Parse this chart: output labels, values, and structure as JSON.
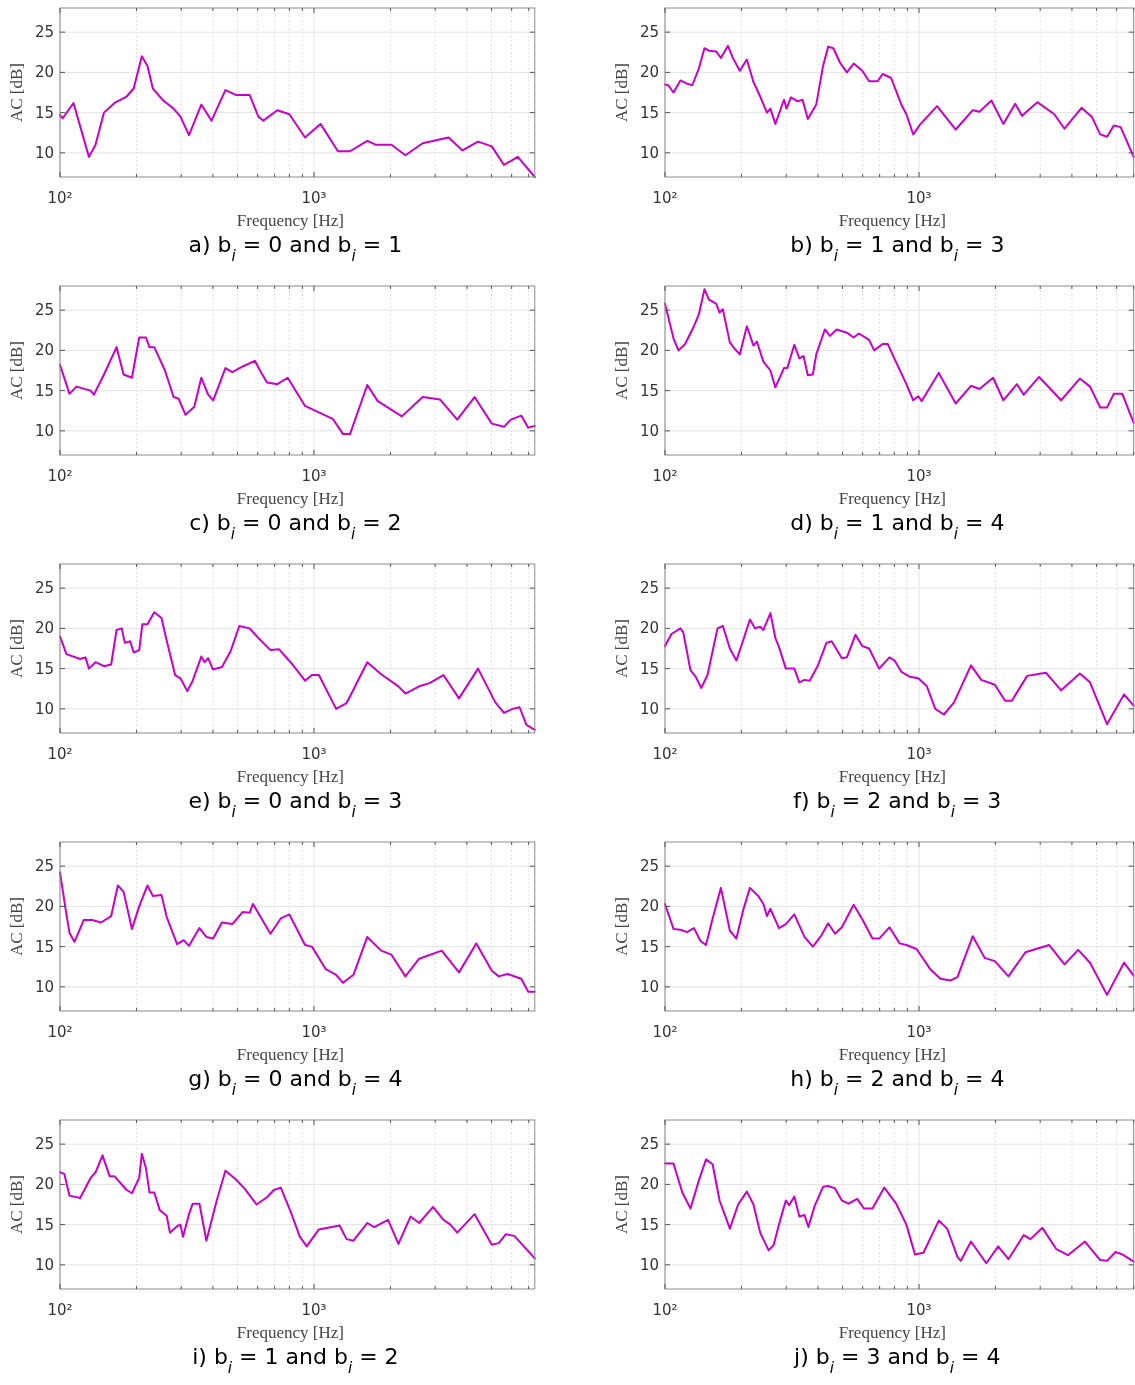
{
  "chart_data": [
    {
      "type": "line",
      "title": "a) b$_{i}$ = 0 and b$_{i}$ = 1",
      "xlabel": "Frequency [Hz]",
      "ylabel": "AC [dB]",
      "log": "x",
      "grid": true,
      "xlim": [
        100,
        7400
      ],
      "ylim": [
        7,
        28
      ],
      "yticks": [
        10,
        15,
        20,
        25
      ],
      "xticks": [
        {
          "value": 100,
          "label": "10²"
        },
        {
          "value": 200,
          "label": null
        },
        {
          "value": 300,
          "label": null
        },
        {
          "value": 400,
          "label": null
        },
        {
          "value": 500,
          "label": null
        },
        {
          "value": 600,
          "label": null
        },
        {
          "value": 700,
          "label": null
        },
        {
          "value": 800,
          "label": null
        },
        {
          "value": 900,
          "label": null
        },
        {
          "value": 1000,
          "label": "10³"
        },
        {
          "value": 2000,
          "label": null
        },
        {
          "value": 3000,
          "label": null
        },
        {
          "value": 4000,
          "label": null
        },
        {
          "value": 5000,
          "label": null
        },
        {
          "value": 6000,
          "label": null
        },
        {
          "value": 7000,
          "label": null
        }
      ],
      "x": [
        100,
        102.5,
        113,
        130,
        138,
        149,
        164,
        183,
        195,
        210,
        221,
        232,
        255,
        280,
        298,
        322,
        360,
        395,
        448,
        492,
        558,
        604,
        632,
        717,
        800,
        922,
        1061,
        1242,
        1386,
        1621,
        1754,
        2018,
        2290,
        2678,
        3388,
        3840,
        4424,
        5013,
        5596,
        6346,
        7400
      ],
      "series": [
        {
          "color": "#c800c8",
          "values": [
            14.7,
            14.3,
            16.2,
            9.5,
            11,
            15,
            16.2,
            17,
            18,
            22,
            20.8,
            18,
            16.5,
            15.5,
            14.5,
            12.2,
            16,
            14,
            17.8,
            17.2,
            17.2,
            14.5,
            14,
            15.3,
            14.8,
            11.9,
            13.6,
            10.2,
            10.2,
            11.5,
            11,
            11,
            9.7,
            11.2,
            11.9,
            10.3,
            11.4,
            10.8,
            8.5,
            9.5,
            7
          ]
        }
      ]
    },
    {
      "type": "line",
      "title": "b) b$_{i}$ = 1 and b$_{i}$ = 3",
      "xlabel": "Frequency [Hz]",
      "ylabel": "AC [dB]",
      "log": "x",
      "grid": true,
      "xlim": [
        100,
        7000
      ],
      "ylim": [
        7,
        28
      ],
      "yticks": [
        10,
        15,
        20,
        25
      ],
      "xticks": [
        {
          "value": 100,
          "label": "10²"
        },
        {
          "value": 200,
          "label": null
        },
        {
          "value": 300,
          "label": null
        },
        {
          "value": 400,
          "label": null
        },
        {
          "value": 500,
          "label": null
        },
        {
          "value": 600,
          "label": null
        },
        {
          "value": 700,
          "label": null
        },
        {
          "value": 800,
          "label": null
        },
        {
          "value": 900,
          "label": null
        },
        {
          "value": 1000,
          "label": "10³"
        },
        {
          "value": 2000,
          "label": null
        },
        {
          "value": 3000,
          "label": null
        },
        {
          "value": 4000,
          "label": null
        },
        {
          "value": 5000,
          "label": null
        },
        {
          "value": 6000,
          "label": null
        },
        {
          "value": 7000,
          "label": null
        }
      ],
      "x": [
        100,
        103,
        108,
        115,
        122,
        128,
        136,
        143,
        149,
        159,
        166,
        177,
        185,
        197,
        210,
        223,
        237,
        252,
        260,
        272,
        294,
        301,
        313,
        333,
        348,
        365,
        394,
        419,
        439,
        460,
        489,
        520,
        553,
        598,
        636,
        687,
        719,
        777,
        852,
        892,
        949,
        1009,
        1178,
        1395,
        1628,
        1730,
        1928,
        2148,
        2392,
        2545,
        2923,
        3410,
        3740,
        4364,
        4786,
        5170,
        5499,
        5849,
        6221,
        7000
      ],
      "series": [
        {
          "color": "#c800c8",
          "values": [
            18.5,
            18.4,
            17.5,
            19,
            18.6,
            18.4,
            20.5,
            23,
            22.7,
            22.6,
            21.8,
            23.3,
            21.8,
            20.2,
            21.6,
            18.8,
            17,
            15,
            15.5,
            13.6,
            16.6,
            15.5,
            16.9,
            16.4,
            16.6,
            14.2,
            16,
            20.8,
            23.2,
            23,
            21.2,
            20,
            21.1,
            20.2,
            18.9,
            18.9,
            19.8,
            19.3,
            16,
            14.8,
            12.3,
            13.5,
            15.8,
            12.9,
            15.3,
            15.1,
            16.5,
            13.6,
            16.1,
            14.6,
            16.3,
            14.8,
            13,
            15.6,
            14.5,
            12.3,
            12,
            13.4,
            13.2,
            9.5
          ]
        }
      ]
    },
    {
      "type": "line",
      "title": "c) b$_{i}$ = 0 and b$_{i}$ = 2",
      "xlabel": "Frequency [Hz]",
      "ylabel": "AC [dB]",
      "log": "x",
      "grid": true,
      "xlim": [
        100,
        7400
      ],
      "ylim": [
        7,
        28
      ],
      "yticks": [
        10,
        15,
        20,
        25
      ],
      "xticks": [
        {
          "value": 100,
          "label": "10²"
        },
        {
          "value": 200,
          "label": null
        },
        {
          "value": 300,
          "label": null
        },
        {
          "value": 400,
          "label": null
        },
        {
          "value": 500,
          "label": null
        },
        {
          "value": 600,
          "label": null
        },
        {
          "value": 700,
          "label": null
        },
        {
          "value": 800,
          "label": null
        },
        {
          "value": 900,
          "label": null
        },
        {
          "value": 1000,
          "label": "10³"
        },
        {
          "value": 2000,
          "label": null
        },
        {
          "value": 3000,
          "label": null
        },
        {
          "value": 4000,
          "label": null
        },
        {
          "value": 5000,
          "label": null
        },
        {
          "value": 6000,
          "label": null
        },
        {
          "value": 7000,
          "label": null
        }
      ],
      "x": [
        100,
        109,
        116,
        132,
        136,
        149,
        167,
        178,
        192,
        205,
        218,
        225,
        235,
        259,
        280,
        293,
        312,
        338,
        360,
        383,
        401,
        448,
        477,
        524,
        585,
        613,
        653,
        717,
        788,
        922,
        1045,
        1185,
        1301,
        1386,
        1621,
        1782,
        2218,
        2678,
        3133,
        3664,
        4288,
        5013,
        5596,
        5960,
        6546,
        6970,
        7400
      ],
      "series": [
        {
          "color": "#c800c8",
          "values": [
            18.2,
            14.6,
            15.5,
            15,
            14.5,
            17,
            20.4,
            17,
            16.6,
            21.6,
            21.6,
            20.4,
            20.4,
            17.5,
            14.2,
            14,
            12,
            13,
            16.6,
            14.5,
            13.8,
            17.8,
            17.3,
            18,
            18.7,
            17.5,
            16,
            15.8,
            16.6,
            13.1,
            12.3,
            11.5,
            9.6,
            9.6,
            15.7,
            13.7,
            11.8,
            14.2,
            13.9,
            11.4,
            14.2,
            10.9,
            10.5,
            11.4,
            11.9,
            10.4,
            10.6
          ]
        }
      ]
    },
    {
      "type": "line",
      "title": "d) b$_{i}$ = 1 and b$_{i}$ = 4",
      "xlabel": "Frequency [Hz]",
      "ylabel": "AC [dB]",
      "log": "x",
      "grid": true,
      "xlim": [
        100,
        7000
      ],
      "ylim": [
        7,
        28
      ],
      "yticks": [
        10,
        15,
        20,
        25
      ],
      "xticks": [
        {
          "value": 100,
          "label": "10²"
        },
        {
          "value": 200,
          "label": null
        },
        {
          "value": 300,
          "label": null
        },
        {
          "value": 400,
          "label": null
        },
        {
          "value": 500,
          "label": null
        },
        {
          "value": 600,
          "label": null
        },
        {
          "value": 700,
          "label": null
        },
        {
          "value": 800,
          "label": null
        },
        {
          "value": 900,
          "label": null
        },
        {
          "value": 1000,
          "label": "10³"
        },
        {
          "value": 2000,
          "label": null
        },
        {
          "value": 3000,
          "label": null
        },
        {
          "value": 4000,
          "label": null
        },
        {
          "value": 5000,
          "label": null
        },
        {
          "value": 6000,
          "label": null
        },
        {
          "value": 7000,
          "label": null
        }
      ],
      "x": [
        100,
        108,
        113,
        120,
        130,
        136,
        143,
        149,
        159,
        164,
        169,
        180,
        188,
        197,
        210,
        223,
        230,
        244,
        260,
        272,
        294,
        303,
        323,
        338,
        351,
        365,
        382,
        394,
        426,
        446,
        474,
        520,
        553,
        580,
        636,
        666,
        719,
        753,
        813,
        892,
        949,
        994,
        1025,
        1196,
        1395,
        1602,
        1730,
        1958,
        2148,
        2430,
        2584,
        2970,
        3628,
        4297,
        4713,
        5170,
        5499,
        5849,
        6317,
        7000
      ],
      "series": [
        {
          "color": "#c800c8",
          "values": [
            25.8,
            21.5,
            20,
            20.8,
            23,
            24.5,
            27.6,
            26.3,
            25.8,
            24.7,
            25.1,
            21,
            20.2,
            19.5,
            23,
            20.6,
            21.1,
            18.6,
            17.5,
            15.4,
            17.8,
            17.8,
            20.7,
            19,
            19.3,
            16.9,
            17,
            19.5,
            22.6,
            21.8,
            22.6,
            22.2,
            21.6,
            22.1,
            21.3,
            20,
            20.8,
            20.8,
            18.5,
            15.8,
            13.8,
            14.3,
            13.7,
            17.2,
            13.4,
            15.6,
            15.2,
            16.6,
            13.8,
            15.8,
            14.5,
            16.7,
            13.8,
            16.5,
            15.5,
            12.9,
            12.9,
            14.6,
            14.6,
            11
          ]
        }
      ]
    },
    {
      "type": "line",
      "title": "e) b$_{i}$ = 0 and b$_{i}$ = 3",
      "xlabel": "Frequency [Hz]",
      "ylabel": "AC [dB]",
      "log": "x",
      "grid": true,
      "xlim": [
        100,
        7400
      ],
      "ylim": [
        7,
        28
      ],
      "yticks": [
        10,
        15,
        20,
        25
      ],
      "xticks": [
        {
          "value": 100,
          "label": "10²"
        },
        {
          "value": 200,
          "label": null
        },
        {
          "value": 300,
          "label": null
        },
        {
          "value": 400,
          "label": null
        },
        {
          "value": 500,
          "label": null
        },
        {
          "value": 600,
          "label": null
        },
        {
          "value": 700,
          "label": null
        },
        {
          "value": 800,
          "label": null
        },
        {
          "value": 900,
          "label": null
        },
        {
          "value": 1000,
          "label": "10³"
        },
        {
          "value": 2000,
          "label": null
        },
        {
          "value": 3000,
          "label": null
        },
        {
          "value": 4000,
          "label": null
        },
        {
          "value": 5000,
          "label": null
        },
        {
          "value": 6000,
          "label": null
        },
        {
          "value": 7000,
          "label": null
        }
      ],
      "x": [
        100,
        106,
        120,
        126,
        130,
        138,
        149,
        159,
        167,
        175,
        180,
        189,
        195,
        205,
        211,
        221,
        235,
        251,
        263,
        284,
        298,
        317,
        333,
        360,
        371,
        383,
        400,
        434,
        470,
        508,
        558,
        604,
        674,
        729,
        813,
        922,
        981,
        1045,
        1222,
        1343,
        1621,
        1838,
        2150,
        2290,
        2595,
        2851,
        3233,
        3722,
        4424,
        5175,
        5596,
        6053,
        6446,
        6863,
        7400
      ],
      "series": [
        {
          "color": "#c800c8",
          "values": [
            19,
            16.8,
            16.2,
            16.4,
            15,
            15.8,
            15.3,
            15.5,
            19.8,
            20,
            18.2,
            18.4,
            17,
            17.3,
            20.5,
            20.5,
            22,
            21.3,
            18.5,
            14.2,
            13.8,
            12.2,
            13.5,
            16.5,
            15.8,
            16.3,
            14.9,
            15.2,
            17.2,
            20.3,
            20,
            18.8,
            17.3,
            17.4,
            15.7,
            13.5,
            14.2,
            14.2,
            10,
            10.7,
            15.8,
            14.3,
            12.8,
            11.9,
            12.8,
            13.2,
            14.2,
            11.3,
            15,
            10.8,
            9.5,
            10,
            10.2,
            8,
            7.4
          ]
        }
      ]
    },
    {
      "type": "line",
      "title": "f) b$_{i}$ = 2 and b$_{i}$ = 3",
      "xlabel": "Frequency [Hz]",
      "ylabel": "AC [dB]",
      "log": "x",
      "grid": true,
      "xlim": [
        100,
        7000
      ],
      "ylim": [
        7,
        28
      ],
      "yticks": [
        10,
        15,
        20,
        25
      ],
      "xticks": [
        {
          "value": 100,
          "label": "10²"
        },
        {
          "value": 200,
          "label": null
        },
        {
          "value": 300,
          "label": null
        },
        {
          "value": 400,
          "label": null
        },
        {
          "value": 500,
          "label": null
        },
        {
          "value": 600,
          "label": null
        },
        {
          "value": 700,
          "label": null
        },
        {
          "value": 800,
          "label": null
        },
        {
          "value": 900,
          "label": null
        },
        {
          "value": 1000,
          "label": "10³"
        },
        {
          "value": 2000,
          "label": null
        },
        {
          "value": 3000,
          "label": null
        },
        {
          "value": 4000,
          "label": null
        },
        {
          "value": 5000,
          "label": null
        },
        {
          "value": 6000,
          "label": null
        },
        {
          "value": 7000,
          "label": null
        }
      ],
      "x": [
        100,
        106,
        115,
        118,
        126,
        132,
        139,
        147,
        161,
        169,
        180,
        191,
        203,
        216,
        226,
        237,
        244,
        260,
        272,
        281,
        299,
        323,
        338,
        354,
        371,
        400,
        432,
        453,
        497,
        520,
        562,
        598,
        636,
        697,
        765,
        801,
        852,
        920,
        994,
        1074,
        1159,
        1253,
        1374,
        1602,
        1758,
        1989,
        2182,
        2320,
        2666,
        3157,
        3628,
        4297,
        4713,
        5499,
        6415,
        7000
      ],
      "series": [
        {
          "color": "#c800c8",
          "values": [
            17.8,
            19.3,
            20,
            19.5,
            14.8,
            14,
            12.6,
            14.2,
            20,
            20.3,
            17.5,
            16,
            18.5,
            21.1,
            20,
            20.2,
            19.8,
            21.9,
            18.8,
            17.7,
            15,
            15,
            13.3,
            13.6,
            13.5,
            15.4,
            18.2,
            18.4,
            16.3,
            16.4,
            19.2,
            17.8,
            17.5,
            15,
            16.4,
            16,
            14.6,
            14,
            13.8,
            12.8,
            10,
            9.3,
            10.8,
            15.4,
            13.6,
            13,
            11,
            11,
            14.1,
            14.5,
            12.3,
            14.4,
            13.3,
            8.1,
            11.8,
            10.4
          ]
        }
      ]
    },
    {
      "type": "line",
      "title": "g) b$_{i}$ = 0 and b$_{i}$ = 4",
      "xlabel": "Frequency [Hz]",
      "ylabel": "AC [dB]",
      "log": "x",
      "grid": true,
      "xlim": [
        100,
        7400
      ],
      "ylim": [
        7,
        28
      ],
      "yticks": [
        10,
        15,
        20,
        25
      ],
      "xticks": [
        {
          "value": 100,
          "label": "10²"
        },
        {
          "value": 200,
          "label": null
        },
        {
          "value": 300,
          "label": null
        },
        {
          "value": 400,
          "label": null
        },
        {
          "value": 500,
          "label": null
        },
        {
          "value": 600,
          "label": null
        },
        {
          "value": 700,
          "label": null
        },
        {
          "value": 800,
          "label": null
        },
        {
          "value": 900,
          "label": null
        },
        {
          "value": 1000,
          "label": "10³"
        },
        {
          "value": 2000,
          "label": null
        },
        {
          "value": 3000,
          "label": null
        },
        {
          "value": 4000,
          "label": null
        },
        {
          "value": 5000,
          "label": null
        },
        {
          "value": 6000,
          "label": null
        },
        {
          "value": 7000,
          "label": null
        }
      ],
      "x": [
        100,
        106,
        109,
        114,
        124,
        134,
        145,
        159,
        169,
        178,
        192,
        205,
        221,
        232,
        251,
        263,
        289,
        307,
        322,
        354,
        377,
        401,
        434,
        477,
        524,
        558,
        575,
        674,
        740,
        800,
        922,
        981,
        1113,
        1222,
        1301,
        1430,
        1621,
        1838,
        2018,
        2290,
        2595,
        3183,
        3722,
        4355,
        5013,
        5340,
        5775,
        6546,
        6970,
        7400
      ],
      "series": [
        {
          "color": "#c800c8",
          "values": [
            24.2,
            19,
            16.7,
            15.6,
            18.3,
            18.3,
            18,
            18.8,
            22.6,
            21.8,
            17.2,
            20,
            22.6,
            21.3,
            21.4,
            18.7,
            15.3,
            15.8,
            15.1,
            17.3,
            16.2,
            16,
            18,
            17.8,
            19.3,
            19.2,
            20.3,
            16.6,
            18.5,
            19,
            15.2,
            15,
            12.2,
            11.5,
            10.5,
            11.5,
            16.2,
            14.5,
            14,
            11.3,
            13.5,
            14.5,
            11.8,
            15.4,
            12,
            11.3,
            11.6,
            11,
            9.4,
            9.4
          ]
        }
      ]
    },
    {
      "type": "line",
      "title": "h) b$_{i}$ = 2 and b$_{i}$ = 4",
      "xlabel": "Frequency [Hz]",
      "ylabel": "AC [dB]",
      "log": "x",
      "grid": true,
      "xlim": [
        100,
        7000
      ],
      "ylim": [
        7,
        28
      ],
      "yticks": [
        10,
        15,
        20,
        25
      ],
      "xticks": [
        {
          "value": 100,
          "label": "10²"
        },
        {
          "value": 200,
          "label": null
        },
        {
          "value": 300,
          "label": null
        },
        {
          "value": 400,
          "label": null
        },
        {
          "value": 500,
          "label": null
        },
        {
          "value": 600,
          "label": null
        },
        {
          "value": 700,
          "label": null
        },
        {
          "value": 800,
          "label": null
        },
        {
          "value": 900,
          "label": null
        },
        {
          "value": 1000,
          "label": "10³"
        },
        {
          "value": 2000,
          "label": null
        },
        {
          "value": 3000,
          "label": null
        },
        {
          "value": 4000,
          "label": null
        },
        {
          "value": 5000,
          "label": null
        },
        {
          "value": 6000,
          "label": null
        },
        {
          "value": 7000,
          "label": null
        }
      ],
      "x": [
        100,
        108,
        115,
        122,
        130,
        138,
        145,
        154,
        166,
        180,
        191,
        203,
        216,
        233,
        244,
        252,
        260,
        281,
        299,
        323,
        354,
        382,
        413,
        439,
        467,
        497,
        553,
        598,
        656,
        697,
        765,
        839,
        892,
        978,
        1107,
        1215,
        1332,
        1417,
        1628,
        1813,
        1989,
        2250,
        2624,
        3256,
        3740,
        4232,
        4713,
        5499,
        6415,
        7000
      ],
      "series": [
        {
          "color": "#c800c8",
          "values": [
            20.3,
            17.2,
            17.1,
            16.8,
            17.3,
            15.7,
            15.2,
            18.5,
            22.3,
            17,
            16,
            19.5,
            22.3,
            21.3,
            20.3,
            18.8,
            19.7,
            17.3,
            17.8,
            19,
            16.2,
            15,
            16.4,
            17.9,
            16.6,
            17.4,
            20.2,
            18.4,
            16,
            16,
            17.4,
            15.4,
            15.2,
            14.7,
            12.2,
            11,
            10.8,
            11.2,
            16.3,
            13.6,
            13.2,
            11.3,
            14.3,
            15.2,
            12.8,
            14.6,
            13,
            9,
            13,
            11.4
          ]
        }
      ]
    },
    {
      "type": "line",
      "title": "i) b$_{i}$ = 1 and b$_{i}$ = 2",
      "xlabel": "Frequency [Hz]",
      "ylabel": "AC [dB]",
      "log": "x",
      "grid": true,
      "xlim": [
        100,
        7400
      ],
      "ylim": [
        7,
        28
      ],
      "yticks": [
        10,
        15,
        20,
        25
      ],
      "xticks": [
        {
          "value": 100,
          "label": "10²"
        },
        {
          "value": 200,
          "label": null
        },
        {
          "value": 300,
          "label": null
        },
        {
          "value": 400,
          "label": null
        },
        {
          "value": 500,
          "label": null
        },
        {
          "value": 600,
          "label": null
        },
        {
          "value": 700,
          "label": null
        },
        {
          "value": 800,
          "label": null
        },
        {
          "value": 900,
          "label": null
        },
        {
          "value": 1000,
          "label": "10³"
        },
        {
          "value": 2000,
          "label": null
        },
        {
          "value": 3000,
          "label": null
        },
        {
          "value": 4000,
          "label": null
        },
        {
          "value": 5000,
          "label": null
        },
        {
          "value": 6000,
          "label": null
        },
        {
          "value": 7000,
          "label": null
        }
      ],
      "x": [
        100,
        104,
        109,
        120,
        132,
        138,
        147,
        157,
        164,
        183,
        192,
        205,
        210,
        218,
        225,
        235,
        247,
        263,
        271,
        289,
        298,
        305,
        322,
        333,
        354,
        377,
        414,
        448,
        493,
        532,
        594,
        653,
        695,
        740,
        812,
        879,
        936,
        1045,
        1261,
        1343,
        1430,
        1621,
        1726,
        1957,
        2150,
        2399,
        2595,
        2943,
        3233,
        3442,
        3664,
        4288,
        5013,
        5340,
        5685,
        6150,
        7400
      ],
      "series": [
        {
          "color": "#c800c8",
          "values": [
            21.5,
            21.3,
            18.6,
            18.3,
            20.8,
            21.5,
            23.6,
            21,
            21,
            19.3,
            18.9,
            20.8,
            23.8,
            22,
            19,
            19,
            16.8,
            16.1,
            14,
            14.8,
            15,
            13.5,
            16.3,
            17.6,
            17.6,
            13,
            18,
            21.7,
            20.6,
            19.5,
            17.5,
            18.4,
            19.3,
            19.6,
            16.5,
            13.5,
            12.3,
            14.4,
            14.9,
            13.2,
            13,
            15.2,
            14.7,
            15.6,
            12.6,
            16,
            15.2,
            17.2,
            15.6,
            15,
            14,
            16.3,
            12.5,
            12.7,
            13.8,
            13.6,
            10.8
          ]
        }
      ]
    },
    {
      "type": "line",
      "title": "j) b$_{i}$ = 3 and b$_{i}$ = 4",
      "xlabel": "Frequency [Hz]",
      "ylabel": "AC [dB]",
      "log": "x",
      "grid": true,
      "xlim": [
        100,
        7000
      ],
      "ylim": [
        7,
        28
      ],
      "yticks": [
        10,
        15,
        20,
        25
      ],
      "xticks": [
        {
          "value": 100,
          "label": "10²"
        },
        {
          "value": 200,
          "label": null
        },
        {
          "value": 300,
          "label": null
        },
        {
          "value": 400,
          "label": null
        },
        {
          "value": 500,
          "label": null
        },
        {
          "value": 600,
          "label": null
        },
        {
          "value": 700,
          "label": null
        },
        {
          "value": 800,
          "label": null
        },
        {
          "value": 900,
          "label": null
        },
        {
          "value": 1000,
          "label": "10³"
        },
        {
          "value": 2000,
          "label": null
        },
        {
          "value": 3000,
          "label": null
        },
        {
          "value": 4000,
          "label": null
        },
        {
          "value": 5000,
          "label": null
        },
        {
          "value": 6000,
          "label": null
        },
        {
          "value": 7000,
          "label": null
        }
      ],
      "x": [
        100,
        108,
        117,
        126,
        136,
        145,
        154,
        164,
        180,
        194,
        210,
        223,
        237,
        256,
        268,
        281,
        299,
        308,
        323,
        338,
        354,
        367,
        388,
        419,
        439,
        467,
        497,
        528,
        571,
        607,
        656,
        730,
        813,
        892,
        964,
        1041,
        1196,
        1291,
        1417,
        1461,
        1602,
        1841,
        2050,
        2250,
        2584,
        2749,
        3062,
        3463,
        3857,
        4501,
        5170,
        5499,
        5940,
        6317,
        7000
      ],
      "series": [
        {
          "color": "#c800c8",
          "values": [
            22.6,
            22.6,
            19,
            17,
            20.5,
            23.1,
            22.5,
            18,
            14.5,
            17.5,
            19.1,
            17.5,
            14,
            11.8,
            12.5,
            15,
            18,
            17.4,
            18.5,
            16,
            16.2,
            14.7,
            17.3,
            19.7,
            19.8,
            19.5,
            18,
            17.6,
            18.2,
            17,
            17,
            19.6,
            17.6,
            15,
            11.3,
            11.5,
            15.5,
            14.5,
            11,
            10.5,
            12.9,
            10.2,
            12.3,
            10.7,
            13.7,
            13.2,
            14.6,
            12,
            11.2,
            12.9,
            10.6,
            10.5,
            11.6,
            11.3,
            10.4
          ]
        }
      ]
    }
  ]
}
